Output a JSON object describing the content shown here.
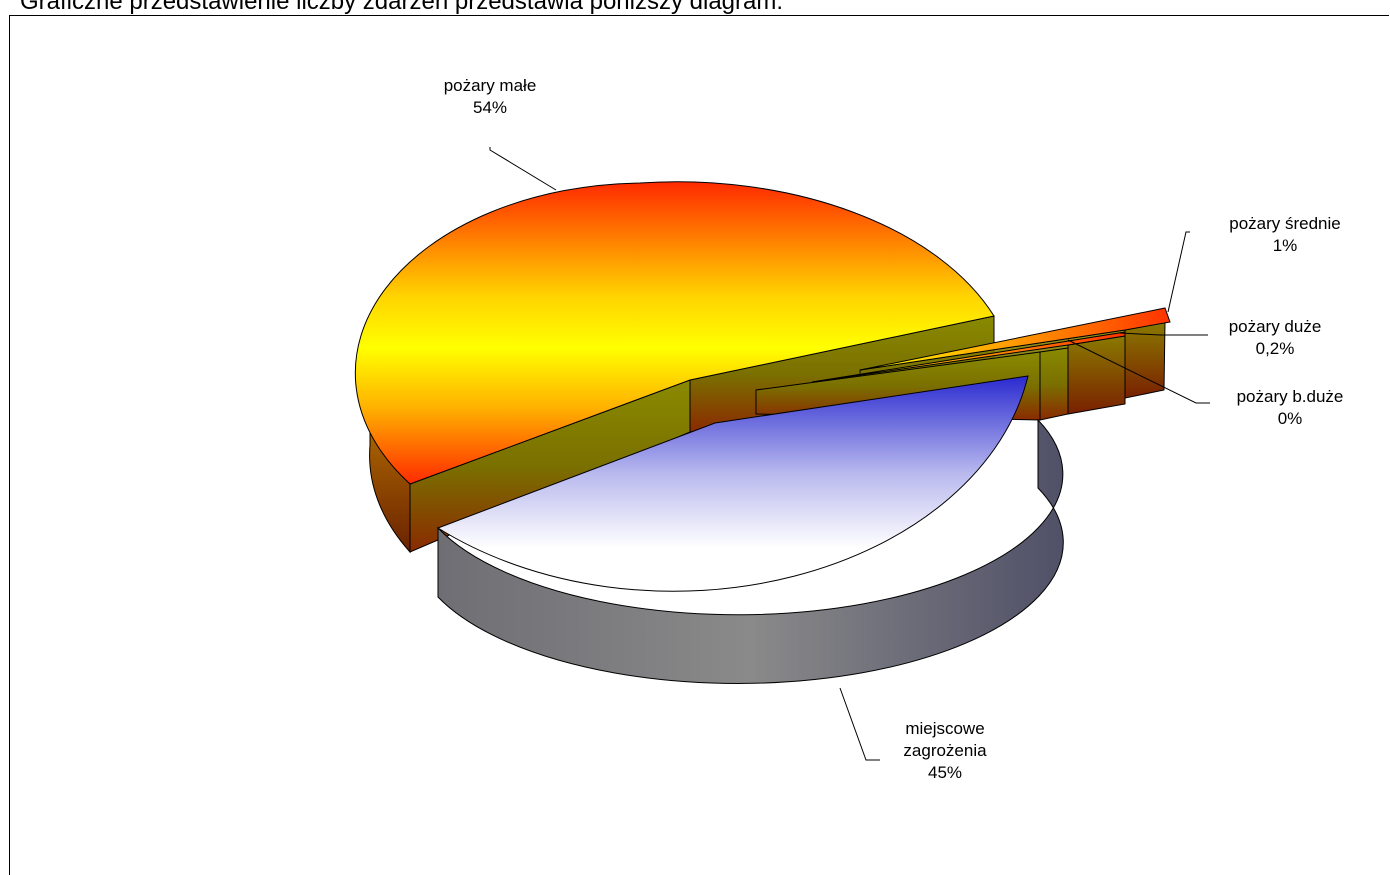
{
  "page": {
    "heading": "Graficzne przedstawienie liczby zdarzeń przedstawia poniższy diagram:"
  },
  "chart_data": {
    "type": "pie",
    "style": "3d-exploded",
    "title": "",
    "legend": "none",
    "categories": [
      "pożary małe",
      "miejscowe zagrożenia",
      "pożary średnie",
      "pożary duże",
      "pożary b.duże"
    ],
    "values": [
      54,
      45,
      1,
      0.2,
      0
    ],
    "labels": {
      "male": {
        "name": "pożary małe",
        "pct": "54%"
      },
      "srednie": {
        "name": "pożary średnie",
        "pct": "1%"
      },
      "duze": {
        "name": "pożary duże",
        "pct": "0,2%"
      },
      "bduze": {
        "name": "pożary b.duże",
        "pct": "0%"
      },
      "miejscowe": {
        "name1": "miejscowe",
        "name2": "zagrożenia",
        "pct": "45%"
      }
    },
    "colors": {
      "male_top": "#ffff00",
      "male_edge": "#ff3300",
      "miejscowe_top": "#ffffff",
      "miejscowe_edge": "#3333cc",
      "miejscowe_side": "#808080",
      "inner_wall": "#808000",
      "small_slices": "#ff3300"
    }
  }
}
